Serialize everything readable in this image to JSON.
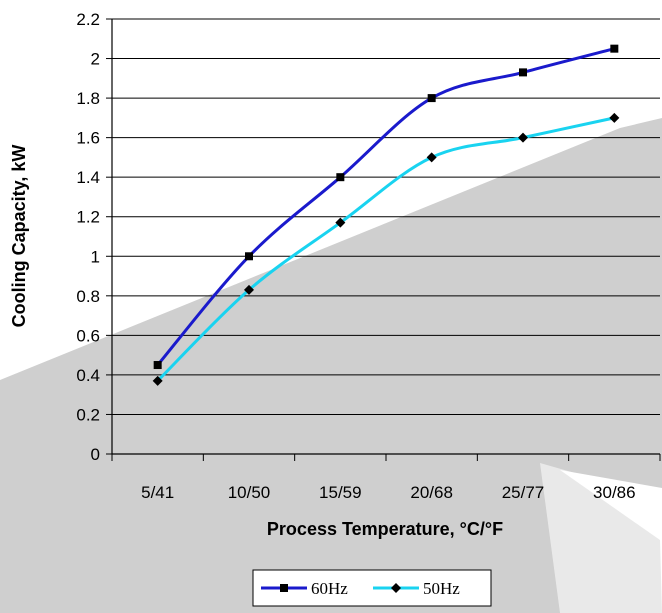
{
  "chart_data": {
    "type": "line",
    "categories": [
      "5/41",
      "10/50",
      "15/59",
      "20/68",
      "25/77",
      "30/86"
    ],
    "series": [
      {
        "name": "60Hz",
        "values": [
          0.45,
          1.0,
          1.4,
          1.8,
          1.93,
          2.05
        ],
        "color": "#1a1acc",
        "marker": "square"
      },
      {
        "name": "50Hz",
        "values": [
          0.37,
          0.83,
          1.17,
          1.5,
          1.6,
          1.7
        ],
        "color": "#19d3f0",
        "marker": "diamond"
      }
    ],
    "y_ticks": [
      "0",
      "0.2",
      "0.4",
      "0.6",
      "0.8",
      "1",
      "1.2",
      "1.4",
      "1.6",
      "1.8",
      "2",
      "2.2"
    ],
    "ylim": [
      0,
      2.2
    ],
    "xlabel": "Process Temperature, °C/°F",
    "ylabel": "Cooling Capacity, kW",
    "grid": "horizontal",
    "legend": "bottom-center",
    "background_watermark_color": "#cfcfcf"
  }
}
